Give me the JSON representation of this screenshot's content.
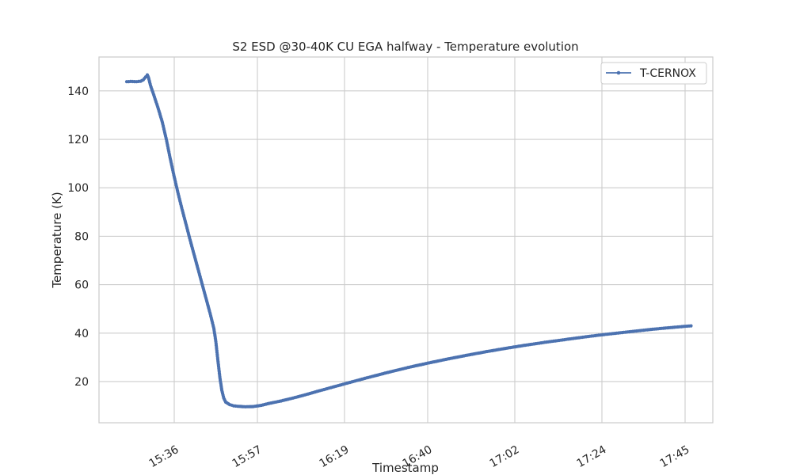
{
  "chart_data": {
    "type": "line",
    "title": "S2 ESD @30-40K CU EGA halfway - Temperature evolution",
    "xlabel": "Timestamp",
    "ylabel": "Temperature (K)",
    "x_unit": "minutes",
    "xlim": [
      917.0,
      1072.0
    ],
    "ylim": [
      3.0,
      154.0
    ],
    "grid": true,
    "legend_position": "top-right",
    "xticks": [
      {
        "value": 936,
        "label": "15:36"
      },
      {
        "value": 957,
        "label": "15:57"
      },
      {
        "value": 979,
        "label": "16:19"
      },
      {
        "value": 1000,
        "label": "16:40"
      },
      {
        "value": 1022,
        "label": "17:02"
      },
      {
        "value": 1044,
        "label": "17:24"
      },
      {
        "value": 1065,
        "label": "17:45"
      }
    ],
    "yticks": [
      {
        "value": 20,
        "label": "20"
      },
      {
        "value": 40,
        "label": "40"
      },
      {
        "value": 60,
        "label": "60"
      },
      {
        "value": 80,
        "label": "80"
      },
      {
        "value": 100,
        "label": "100"
      },
      {
        "value": 120,
        "label": "120"
      },
      {
        "value": 140,
        "label": "140"
      }
    ],
    "series": [
      {
        "name": "T-CERNOX",
        "color": "#4c72b0",
        "points": [
          [
            924.0,
            143.8
          ],
          [
            925.0,
            143.9
          ],
          [
            926.5,
            143.8
          ],
          [
            927.5,
            144.0
          ],
          [
            928.2,
            144.6
          ],
          [
            928.8,
            145.8
          ],
          [
            929.2,
            146.6
          ],
          [
            929.5,
            145.5
          ],
          [
            930.0,
            142.3
          ],
          [
            931.0,
            137.5
          ],
          [
            932.0,
            132.5
          ],
          [
            933.0,
            127.0
          ],
          [
            934.0,
            120.0
          ],
          [
            935.0,
            112.0
          ],
          [
            936.0,
            104.5
          ],
          [
            937.0,
            97.5
          ],
          [
            938.0,
            91.0
          ],
          [
            939.0,
            84.8
          ],
          [
            940.0,
            78.5
          ],
          [
            941.0,
            72.5
          ],
          [
            942.0,
            66.5
          ],
          [
            943.0,
            60.5
          ],
          [
            944.0,
            54.5
          ],
          [
            945.0,
            48.5
          ],
          [
            946.0,
            42.0
          ],
          [
            946.5,
            36.5
          ],
          [
            947.0,
            29.0
          ],
          [
            947.5,
            22.0
          ],
          [
            948.0,
            16.5
          ],
          [
            948.5,
            13.2
          ],
          [
            949.0,
            11.5
          ],
          [
            950.0,
            10.5
          ],
          [
            951.0,
            10.0
          ],
          [
            952.0,
            9.8
          ],
          [
            954.0,
            9.6
          ],
          [
            956.0,
            9.7
          ],
          [
            958.0,
            10.2
          ],
          [
            960.0,
            11.0
          ],
          [
            963.0,
            12.0
          ],
          [
            966.0,
            13.2
          ],
          [
            969.0,
            14.5
          ],
          [
            972.0,
            15.9
          ],
          [
            976.0,
            17.7
          ],
          [
            980.0,
            19.5
          ],
          [
            985.0,
            21.7
          ],
          [
            990.0,
            23.8
          ],
          [
            995.0,
            25.8
          ],
          [
            1000.0,
            27.6
          ],
          [
            1005.0,
            29.3
          ],
          [
            1010.0,
            30.9
          ],
          [
            1015.0,
            32.4
          ],
          [
            1020.0,
            33.8
          ],
          [
            1025.0,
            35.1
          ],
          [
            1030.0,
            36.3
          ],
          [
            1035.0,
            37.4
          ],
          [
            1040.0,
            38.5
          ],
          [
            1045.0,
            39.5
          ],
          [
            1050.0,
            40.4
          ],
          [
            1055.0,
            41.3
          ],
          [
            1060.0,
            42.1
          ],
          [
            1065.0,
            42.8
          ],
          [
            1066.5,
            43.0
          ]
        ]
      }
    ]
  }
}
